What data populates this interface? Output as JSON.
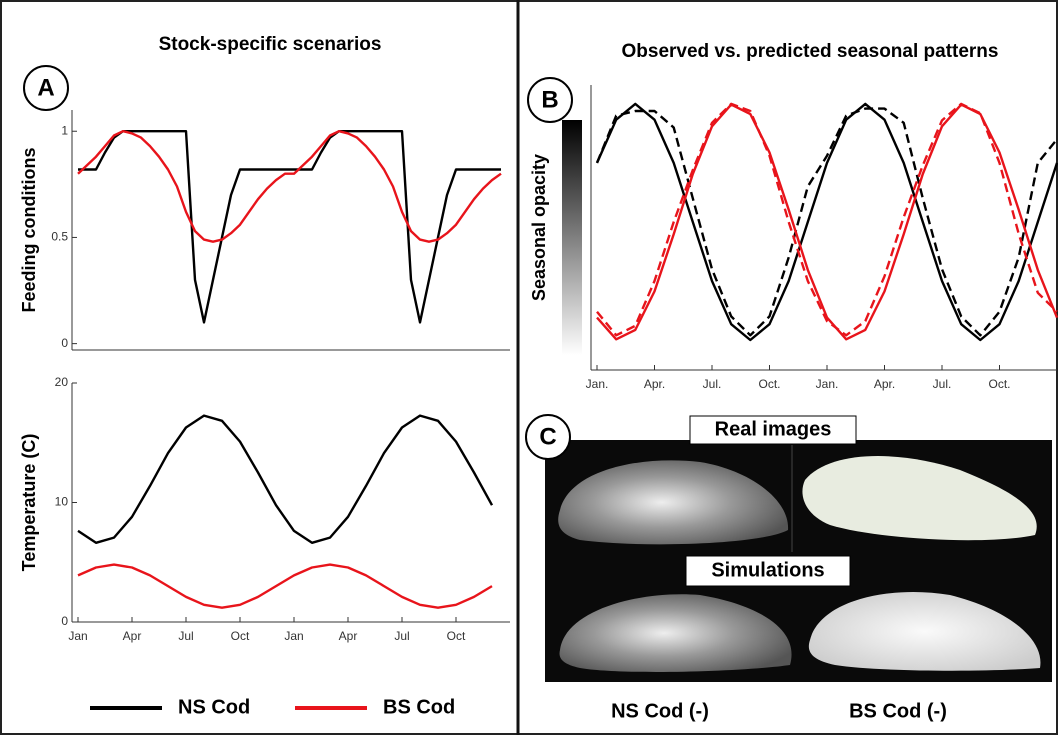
{
  "chart_data": [
    {
      "type": "line",
      "panel": "A",
      "title": "Stock-specific scenarios",
      "ylabel": "Feeding conditions",
      "x": [
        0,
        0.5,
        1,
        1.5,
        2,
        2.5,
        3,
        3.5,
        4,
        4.5,
        5,
        5.5,
        6,
        6.5,
        7,
        7.5,
        8,
        8.5,
        9,
        9.5,
        10,
        10.5,
        11,
        11.5,
        12,
        12.5,
        13,
        13.5,
        14,
        14.5,
        15,
        15.5,
        16,
        16.5,
        17,
        17.5,
        18,
        18.5,
        19,
        19.5,
        20,
        20.5,
        21,
        21.5,
        22,
        22.5,
        23,
        23.5
      ],
      "xlim": [
        0,
        24
      ],
      "ylim": [
        -0.03,
        1.1
      ],
      "yticks": [
        0,
        0.5,
        1
      ],
      "series": [
        {
          "name": "NS Cod",
          "color": "#000000",
          "values": [
            0.82,
            0.82,
            0.82,
            0.9,
            0.97,
            1,
            1,
            1,
            1,
            1,
            1,
            1,
            1,
            0.3,
            0.1,
            0.3,
            0.5,
            0.7,
            0.82,
            0.82,
            0.82,
            0.82,
            0.82,
            0.82,
            0.82,
            0.82,
            0.82,
            0.9,
            0.97,
            1,
            1,
            1,
            1,
            1,
            1,
            1,
            1,
            0.3,
            0.1,
            0.3,
            0.5,
            0.7,
            0.82,
            0.82,
            0.82,
            0.82,
            0.82,
            0.82
          ]
        },
        {
          "name": "BS Cod",
          "color": "#e8141b",
          "values": [
            0.8,
            0.84,
            0.88,
            0.93,
            0.98,
            1,
            0.99,
            0.97,
            0.93,
            0.88,
            0.82,
            0.74,
            0.62,
            0.53,
            0.49,
            0.48,
            0.49,
            0.52,
            0.56,
            0.62,
            0.68,
            0.73,
            0.77,
            0.8,
            0.8,
            0.84,
            0.88,
            0.93,
            0.98,
            1,
            0.99,
            0.97,
            0.93,
            0.88,
            0.82,
            0.74,
            0.62,
            0.53,
            0.49,
            0.48,
            0.49,
            0.52,
            0.56,
            0.62,
            0.68,
            0.73,
            0.77,
            0.8
          ]
        }
      ]
    },
    {
      "type": "line",
      "ylabel": "Temperature (C)",
      "x": [
        0,
        1,
        2,
        3,
        4,
        5,
        6,
        7,
        8,
        9,
        10,
        11,
        12,
        13,
        14,
        15,
        16,
        17,
        18,
        19,
        20,
        21,
        22,
        23
      ],
      "xlim": [
        0,
        24
      ],
      "ylim": [
        0,
        20
      ],
      "yticks": [
        0,
        10,
        20
      ],
      "xticks": [
        {
          "value": 0,
          "label": "Jan"
        },
        {
          "value": 3,
          "label": "Apr"
        },
        {
          "value": 6,
          "label": "Jul"
        },
        {
          "value": 9,
          "label": "Oct"
        },
        {
          "value": 12,
          "label": "Jan"
        },
        {
          "value": 15,
          "label": "Apr"
        },
        {
          "value": 18,
          "label": "Jul"
        },
        {
          "value": 21,
          "label": "Oct"
        }
      ],
      "series": [
        {
          "color": "#000000",
          "values": [
            7.62,
            6.63,
            7.06,
            8.8,
            11.39,
            14.13,
            16.28,
            17.27,
            16.84,
            15.1,
            12.51,
            9.77,
            7.62,
            6.63,
            7.06,
            8.8,
            11.39,
            14.13,
            16.28,
            17.27,
            16.84,
            15.1,
            12.51,
            9.77
          ]
        },
        {
          "color": "#e8141b",
          "values": [
            3.9,
            4.56,
            4.8,
            4.56,
            3.9,
            3,
            2.1,
            1.44,
            1.2,
            1.44,
            2.1,
            3,
            3.9,
            4.56,
            4.8,
            4.56,
            3.9,
            3,
            2.1,
            1.44,
            1.2,
            1.44,
            2.1,
            3
          ]
        }
      ]
    },
    {
      "type": "line",
      "panel": "B",
      "title": "Observed vs. predicted seasonal patterns",
      "ylabel": "Seasonal opacity",
      "x": [
        0,
        1,
        2,
        3,
        4,
        5,
        6,
        7,
        8,
        9,
        10,
        11,
        12,
        13,
        14,
        15,
        16,
        17,
        18,
        19,
        20,
        21,
        22,
        23,
        24
      ],
      "xlim": [
        0,
        24
      ],
      "ylim": [
        -0.127,
        1.08
      ],
      "xticks": [
        {
          "value": 0,
          "label": "Jan."
        },
        {
          "value": 3,
          "label": "Apr."
        },
        {
          "value": 6,
          "label": "Jul."
        },
        {
          "value": 9,
          "label": "Oct."
        },
        {
          "value": 12,
          "label": "Jan."
        },
        {
          "value": 15,
          "label": "Apr."
        },
        {
          "value": 18,
          "label": "Jul."
        },
        {
          "value": 21,
          "label": "Oct."
        }
      ],
      "series": [
        {
          "color": "#000000",
          "dashed": true,
          "values": [
            0.75,
            0.95,
            0.97,
            0.97,
            0.9,
            0.6,
            0.3,
            0.1,
            0.02,
            0.1,
            0.35,
            0.65,
            0.78,
            0.95,
            0.98,
            0.98,
            0.92,
            0.6,
            0.3,
            0.1,
            0.02,
            0.12,
            0.35,
            0.75,
            0.85
          ]
        },
        {
          "color": "#000000",
          "values": [
            0.75,
            0.933,
            1,
            0.933,
            0.75,
            0.5,
            0.25,
            0.067,
            0,
            0.067,
            0.25,
            0.5,
            0.75,
            0.933,
            1,
            0.933,
            0.75,
            0.5,
            0.25,
            0.067,
            0,
            0.067,
            0.25,
            0.5,
            0.75
          ]
        },
        {
          "color": "#e8141b",
          "dashed": true,
          "values": [
            0.12,
            0.02,
            0.06,
            0.25,
            0.5,
            0.72,
            0.92,
            1,
            0.97,
            0.78,
            0.5,
            0.25,
            0.08,
            0.02,
            0.08,
            0.27,
            0.52,
            0.74,
            0.93,
            1,
            0.96,
            0.75,
            0.45,
            0.2,
            0.12
          ]
        },
        {
          "color": "#e8141b",
          "values": [
            0.095,
            0.003,
            0.043,
            0.206,
            0.448,
            0.703,
            0.905,
            0.997,
            0.957,
            0.794,
            0.552,
            0.297,
            0.095,
            0.003,
            0.043,
            0.206,
            0.448,
            0.703,
            0.905,
            0.997,
            0.957,
            0.794,
            0.552,
            0.297,
            0.095
          ]
        }
      ]
    }
  ],
  "panel_c": {
    "label": "C",
    "rows": [
      "Real images",
      "Simulations"
    ],
    "captions": [
      "NS Cod (-)",
      "BS Cod (-)"
    ]
  }
}
